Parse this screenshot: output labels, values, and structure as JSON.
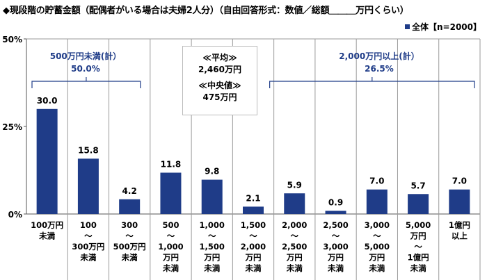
{
  "title": "◆現段階の貯蓄金額（配偶者がいる場合は夫婦2人分）（自由回答形式：数値／総額＿＿＿万円くらい）",
  "chart_data": {
    "type": "bar",
    "categories": [
      "100万円\n未満",
      "100\n～\n300万円\n未満",
      "300\n～\n500万円\n未満",
      "500\n～\n1,000\n万円\n未満",
      "1,000\n～\n1,500\n万円\n未満",
      "1,500\n～\n2,000\n万円\n未満",
      "2,000\n～\n2,500\n万円\n未満",
      "2,500\n～\n3,000\n万円\n未満",
      "3,000\n～\n5,000\n万円\n未満",
      "5,000\n万円\n～\n1億円\n未満",
      "1億円\n以上"
    ],
    "series": [
      {
        "name": "全体【n=2000】",
        "values": [
          30.0,
          15.8,
          4.2,
          11.8,
          9.8,
          2.1,
          5.9,
          0.9,
          7.0,
          5.7,
          7.0
        ]
      }
    ],
    "data_labels": [
      "30.0",
      "15.8",
      "4.2",
      "11.8",
      "9.8",
      "2.1",
      "5.9",
      "0.9",
      "7.0",
      "5.7",
      "7.0"
    ],
    "ylim": [
      0,
      50
    ],
    "yticks": [
      "0%",
      "25%",
      "50%"
    ],
    "color": "#1f3c88",
    "legend": "top-right",
    "grid": "vertical category separators",
    "annotations": {
      "under500": {
        "label": "500万円未満(計）",
        "value": "50.0%"
      },
      "over2000": {
        "label": "2,000万円以上(計）",
        "value": "26.5%"
      },
      "stats": {
        "mean_label": "≪平均≫",
        "mean": "2,460万円",
        "median_label": "≪中央値≫",
        "median": "475万円"
      }
    }
  }
}
